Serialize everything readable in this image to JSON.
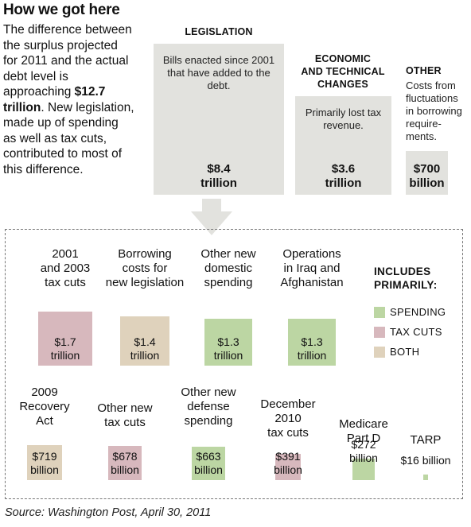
{
  "header": {
    "title": "How we got here",
    "intro_1": "The difference between the surplus projected for 2011 and the actual debt level is approaching ",
    "intro_bold": "$12.7 trillion",
    "intro_2": ". New legislation, made up of spending as well as tax cuts, contributed to most of this difference."
  },
  "top": {
    "legislation": {
      "heading": "LEGISLATION",
      "desc": "Bills enacted since 2001 that have added to the debt.",
      "amount_1": "$8.4",
      "amount_2": "trillion"
    },
    "economic": {
      "heading_1": "ECONOMIC",
      "heading_2": "AND TECHNICAL",
      "heading_3": "CHANGES",
      "desc": "Primarily lost tax revenue.",
      "amount_1": "$3.6",
      "amount_2": "trillion"
    },
    "other": {
      "heading": "OTHER",
      "desc": "Costs from fluctuations in borrowing require-ments.",
      "amount_1": "$700",
      "amount_2": "billion"
    }
  },
  "legend": {
    "title_1": "INCLUDES",
    "title_2": "PRIMARILY:",
    "items": [
      {
        "label": "SPENDING",
        "color": "#bcd6a3"
      },
      {
        "label": "TAX CUTS",
        "color": "#d7b8bd"
      },
      {
        "label": "BOTH",
        "color": "#dfd2bc"
      }
    ]
  },
  "source": "Source: Washington Post, April 30, 2011",
  "chart_data": {
    "type": "bar",
    "title": "How we got here",
    "top_components": [
      {
        "name": "LEGISLATION",
        "value": 8.4,
        "unit": "trillion"
      },
      {
        "name": "ECONOMIC AND TECHNICAL CHANGES",
        "value": 3.6,
        "unit": "trillion"
      },
      {
        "name": "OTHER",
        "value": 0.7,
        "unit": "trillion"
      }
    ],
    "categories": [
      "2001 and 2003 tax cuts",
      "Borrowing costs for new legislation",
      "Other new domestic spending",
      "Operations in Iraq and Afghanistan",
      "2009 Recovery Act",
      "Other new tax cuts",
      "Other new defense spending",
      "December 2010 tax cuts",
      "Medicare Part D",
      "TARP"
    ],
    "values_billion": [
      1700,
      1400,
      1300,
      1300,
      719,
      678,
      663,
      391,
      272,
      16
    ],
    "value_labels_1": [
      "$1.7",
      "$1.4",
      "$1.3",
      "$1.3",
      "$719",
      "$678",
      "$663",
      "$391",
      "$272",
      "$16 billion"
    ],
    "value_labels_2": [
      "trillion",
      "trillion",
      "trillion",
      "trillion",
      "billion",
      "billion",
      "billion",
      "billion",
      "billion",
      ""
    ],
    "types": [
      "TAX CUTS",
      "BOTH",
      "SPENDING",
      "SPENDING",
      "BOTH",
      "TAX CUTS",
      "SPENDING",
      "TAX CUTS",
      "SPENDING",
      "SPENDING"
    ],
    "label_lines": [
      [
        "2001",
        "and 2003",
        "tax cuts"
      ],
      [
        "Borrowing",
        "costs for",
        "new legislation"
      ],
      [
        "Other new",
        "domestic",
        "spending"
      ],
      [
        "Operations",
        "in Iraq and",
        "Afghanistan"
      ],
      [
        "2009",
        "Recovery",
        "Act"
      ],
      [
        "Other new",
        "tax cuts"
      ],
      [
        "Other new",
        "defense",
        "spending"
      ],
      [
        "December",
        "2010",
        "tax cuts"
      ],
      [
        "Medicare",
        "Part D"
      ],
      [
        "TARP"
      ]
    ]
  }
}
